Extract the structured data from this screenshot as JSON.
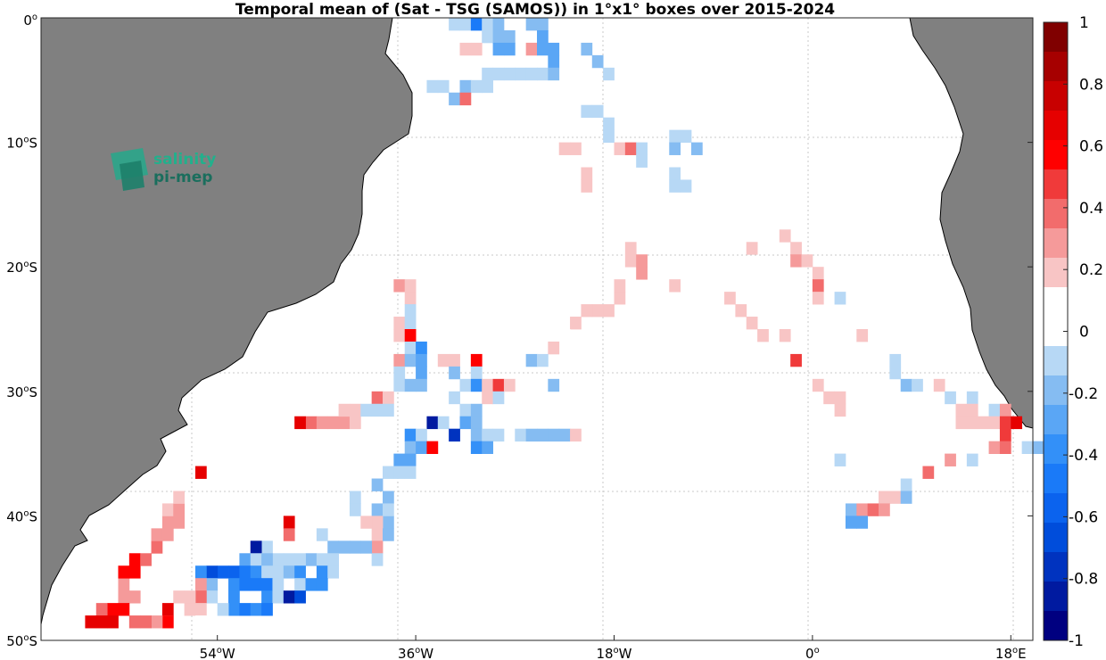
{
  "title": "Temporal mean of (Sat - TSG (SAMOS)) in 1°x1° boxes over 2015-2024",
  "logo": {
    "line1": "salinity",
    "line2": "pi-mep"
  },
  "colors": {
    "land": "#808080",
    "ocean": "#ffffff",
    "grid": "#c8c8c8"
  },
  "map": {
    "lon_range": [
      -70,
      20
    ],
    "lat_range": [
      -50,
      0
    ],
    "xticks": [
      {
        "lon": -54,
        "text": "54",
        "suffix": "W"
      },
      {
        "lon": -36,
        "text": "36",
        "suffix": "W"
      },
      {
        "lon": -18,
        "text": "18",
        "suffix": "W"
      },
      {
        "lon": 0,
        "text": "0",
        "suffix": ""
      },
      {
        "lon": 18,
        "text": "18",
        "suffix": "E"
      }
    ],
    "yticks": [
      {
        "lat": 0,
        "text": "0",
        "suffix": ""
      },
      {
        "lat": -10,
        "text": "10",
        "suffix": "S"
      },
      {
        "lat": -20,
        "text": "20",
        "suffix": "S"
      },
      {
        "lat": -30,
        "text": "30",
        "suffix": "S"
      },
      {
        "lat": -40,
        "text": "40",
        "suffix": "S"
      },
      {
        "lat": -50,
        "text": "50",
        "suffix": "S"
      }
    ]
  },
  "colorbar": {
    "range": [
      -1,
      1
    ],
    "tick_labels": [
      "1",
      "0.8",
      "0.6",
      "0.4",
      "0.2",
      "0",
      "-0.2",
      "-0.4",
      "-0.6",
      "-0.8",
      "-1"
    ],
    "colors": [
      "#000080",
      "#001aa0",
      "#0033bf",
      "#004ddb",
      "#0b63ee",
      "#1a7af8",
      "#3390f8",
      "#5aa6f5",
      "#85bcf2",
      "#b7d8f5",
      "#ffffff",
      "#ffffff",
      "#f8c5c5",
      "#f59a9a",
      "#f26c6c",
      "#f03a3a",
      "#ff0000",
      "#e60000",
      "#c80000",
      "#a60000",
      "#800000"
    ]
  },
  "chart_data": {
    "type": "heatmap",
    "title": "Temporal mean of (Sat - TSG (SAMOS)) in 1°x1° boxes over 2015-2024",
    "x_axis": "longitude",
    "y_axis": "latitude",
    "cell_size_deg": 1,
    "value_range": [
      -1,
      1
    ],
    "cells": [
      [
        -33,
        -1,
        -0.1
      ],
      [
        -32,
        -1,
        -0.1
      ],
      [
        -31,
        -1,
        -0.5
      ],
      [
        -30,
        -1,
        -0.15
      ],
      [
        -29,
        -1,
        -0.2
      ],
      [
        -26,
        -1,
        -0.2
      ],
      [
        -25,
        -1,
        -0.25
      ],
      [
        -30,
        -2,
        -0.15
      ],
      [
        -29,
        -2,
        -0.2
      ],
      [
        -28,
        -2,
        -0.2
      ],
      [
        -25,
        -2,
        -0.3
      ],
      [
        -32,
        -3,
        0.2
      ],
      [
        -31,
        -3,
        0.2
      ],
      [
        -29,
        -3,
        -0.3
      ],
      [
        -28,
        -3,
        -0.3
      ],
      [
        -26,
        -3,
        0.25
      ],
      [
        -25,
        -3,
        -0.3
      ],
      [
        -24,
        -3,
        -0.3
      ],
      [
        -21,
        -3,
        -0.2
      ],
      [
        -24,
        -4,
        -0.3
      ],
      [
        -20,
        -4,
        -0.25
      ],
      [
        -30,
        -5,
        -0.15
      ],
      [
        -29,
        -5,
        -0.15
      ],
      [
        -28,
        -5,
        -0.1
      ],
      [
        -27,
        -5,
        -0.1
      ],
      [
        -26,
        -5,
        -0.1
      ],
      [
        -25,
        -5,
        -0.1
      ],
      [
        -24,
        -5,
        -0.2
      ],
      [
        -19,
        -5,
        -0.1
      ],
      [
        -35,
        -6,
        -0.1
      ],
      [
        -34,
        -6,
        -0.1
      ],
      [
        -32,
        -6,
        -0.2
      ],
      [
        -31,
        -6,
        -0.1
      ],
      [
        -30,
        -6,
        -0.1
      ],
      [
        -33,
        -7,
        -0.2
      ],
      [
        -32,
        -7,
        0.35
      ],
      [
        -21,
        -8,
        -0.1
      ],
      [
        -20,
        -8,
        -0.1
      ],
      [
        -19,
        -9,
        -0.1
      ],
      [
        -19,
        -10,
        -0.1
      ],
      [
        -13,
        -10,
        -0.1
      ],
      [
        -12,
        -10,
        -0.1
      ],
      [
        -23,
        -11,
        0.15
      ],
      [
        -22,
        -11,
        0.15
      ],
      [
        -18,
        -11,
        0.2
      ],
      [
        -17,
        -11,
        0.4
      ],
      [
        -16,
        -11,
        -0.1
      ],
      [
        -13,
        -11,
        -0.25
      ],
      [
        -11,
        -11,
        -0.2
      ],
      [
        -16,
        -12,
        -0.1
      ],
      [
        -21,
        -13,
        0.15
      ],
      [
        -13,
        -13,
        -0.1
      ],
      [
        -21,
        -14,
        0.15
      ],
      [
        -13,
        -14,
        -0.1
      ],
      [
        -12,
        -14,
        -0.1
      ],
      [
        -17,
        -19,
        0.15
      ],
      [
        -6,
        -19,
        0.15
      ],
      [
        -3,
        -18,
        0.15
      ],
      [
        -2,
        -19,
        0.15
      ],
      [
        -17,
        -20,
        0.15
      ],
      [
        -16,
        -20,
        0.3
      ],
      [
        -2,
        -20,
        0.25
      ],
      [
        -1,
        -20,
        0.2
      ],
      [
        -16,
        -21,
        0.3
      ],
      [
        0,
        -21,
        0.2
      ],
      [
        -18,
        -22,
        0.2
      ],
      [
        -13,
        -22,
        0.15
      ],
      [
        -8,
        -23,
        0.2
      ],
      [
        0,
        -22,
        0.35
      ],
      [
        -18,
        -23,
        0.2
      ],
      [
        0,
        -23,
        0.2
      ],
      [
        2,
        -23,
        -0.1
      ],
      [
        -19,
        -24,
        0.2
      ],
      [
        -20,
        -24,
        0.2
      ],
      [
        -21,
        -24,
        0.2
      ],
      [
        -7,
        -24,
        0.15
      ],
      [
        -22,
        -25,
        0.15
      ],
      [
        -6,
        -25,
        0.15
      ],
      [
        -23,
        -26,
        0.1
      ],
      [
        -5,
        -26,
        0.15
      ],
      [
        -3,
        -26,
        0.15
      ],
      [
        4,
        -26,
        0.15
      ],
      [
        -24,
        -27,
        0.15
      ],
      [
        -2,
        -28,
        0.45
      ],
      [
        7,
        -28,
        -0.1
      ],
      [
        7,
        -29,
        -0.1
      ],
      [
        0,
        -30,
        0.15
      ],
      [
        8,
        -30,
        -0.25
      ],
      [
        9,
        -30,
        -0.1
      ],
      [
        11,
        -30,
        0.15
      ],
      [
        1,
        -31,
        0.2
      ],
      [
        2,
        -31,
        0.2
      ],
      [
        12,
        -31,
        -0.1
      ],
      [
        14,
        -31,
        -0.1
      ],
      [
        2,
        -32,
        0.2
      ],
      [
        13,
        -32,
        0.15
      ],
      [
        14,
        -32,
        0.2
      ],
      [
        16,
        -32,
        -0.1
      ],
      [
        13,
        -33,
        0.2
      ],
      [
        14,
        -33,
        0.2
      ],
      [
        15,
        -33,
        0.2
      ],
      [
        16,
        -33,
        0.2
      ],
      [
        17,
        -32,
        0.3
      ],
      [
        17,
        -33,
        0.45
      ],
      [
        18,
        -33,
        0.7
      ],
      [
        17,
        -34,
        0.45
      ],
      [
        16,
        -35,
        0.25
      ],
      [
        17,
        -35,
        0.4
      ],
      [
        19,
        -35,
        -0.1
      ],
      [
        20,
        -35,
        -0.25
      ],
      [
        14,
        -36,
        -0.1
      ],
      [
        12,
        -36,
        0.25
      ],
      [
        2,
        -36,
        -0.1
      ],
      [
        10,
        -37,
        0.35
      ],
      [
        8,
        -38,
        -0.1
      ],
      [
        6,
        -39,
        0.2
      ],
      [
        7,
        -39,
        0.2
      ],
      [
        8,
        -39,
        -0.25
      ],
      [
        3,
        -40,
        -0.2
      ],
      [
        4,
        -40,
        0.3
      ],
      [
        5,
        -40,
        0.35
      ],
      [
        6,
        -40,
        0.3
      ],
      [
        3,
        -41,
        -0.3
      ],
      [
        4,
        -41,
        -0.3
      ],
      [
        -38,
        -22,
        0.3
      ],
      [
        -37,
        -22,
        0.15
      ],
      [
        -37,
        -23,
        0.15
      ],
      [
        -37,
        -24,
        -0.1
      ],
      [
        -38,
        -25,
        0.2
      ],
      [
        -37,
        -25,
        -0.1
      ],
      [
        -38,
        -26,
        0.15
      ],
      [
        -37,
        -26,
        0.6
      ],
      [
        -37,
        -27,
        -0.1
      ],
      [
        -36,
        -27,
        -0.4
      ],
      [
        -38,
        -28,
        0.25
      ],
      [
        -37,
        -28,
        -0.2
      ],
      [
        -36,
        -28,
        -0.3
      ],
      [
        -38,
        -29,
        -0.1
      ],
      [
        -36,
        -29,
        -0.3
      ],
      [
        -38,
        -30,
        -0.1
      ],
      [
        -37,
        -30,
        -0.2
      ],
      [
        -36,
        -30,
        -0.2
      ],
      [
        -34,
        -28,
        0.2
      ],
      [
        -33,
        -28,
        0.2
      ],
      [
        -33,
        -29,
        -0.2
      ],
      [
        -31,
        -28,
        0.6
      ],
      [
        -31,
        -29,
        -0.1
      ],
      [
        -32,
        -30,
        -0.1
      ],
      [
        -31,
        -30,
        -0.45
      ],
      [
        -30,
        -30,
        0.2
      ],
      [
        -29,
        -30,
        0.45
      ],
      [
        -28,
        -30,
        0.2
      ],
      [
        -26,
        -28,
        -0.2
      ],
      [
        -25,
        -28,
        -0.15
      ],
      [
        -24,
        -30,
        -0.2
      ],
      [
        -30,
        -31,
        0.15
      ],
      [
        -29,
        -31,
        -0.15
      ],
      [
        -33,
        -31,
        -0.15
      ],
      [
        -32,
        -32,
        -0.1
      ],
      [
        -31,
        -32,
        -0.2
      ],
      [
        -35,
        -33,
        -0.95
      ],
      [
        -34,
        -33,
        -0.15
      ],
      [
        -32,
        -33,
        -0.3
      ],
      [
        -33,
        -34,
        -0.8
      ],
      [
        -31,
        -33,
        -0.2
      ],
      [
        -31,
        -34,
        -0.2
      ],
      [
        -30,
        -34,
        -0.1
      ],
      [
        -29,
        -34,
        -0.1
      ],
      [
        -37,
        -34,
        -0.4
      ],
      [
        -36,
        -34,
        -0.15
      ],
      [
        -37,
        -35,
        -0.25
      ],
      [
        -36,
        -35,
        -0.3
      ],
      [
        -35,
        -35,
        0.6
      ],
      [
        -31,
        -35,
        -0.4
      ],
      [
        -30,
        -35,
        -0.3
      ],
      [
        -27,
        -34,
        -0.15
      ],
      [
        -26,
        -34,
        -0.25
      ],
      [
        -25,
        -34,
        -0.25
      ],
      [
        -24,
        -34,
        -0.25
      ],
      [
        -23,
        -34,
        -0.2
      ],
      [
        -22,
        -34,
        0.15
      ],
      [
        -38,
        -36,
        -0.3
      ],
      [
        -37,
        -36,
        -0.3
      ],
      [
        -39,
        -37,
        -0.1
      ],
      [
        -38,
        -37,
        -0.1
      ],
      [
        -37,
        -37,
        -0.1
      ],
      [
        -40,
        -38,
        -0.2
      ],
      [
        -42,
        -39,
        -0.1
      ],
      [
        -39,
        -39,
        -0.2
      ],
      [
        -42,
        -40,
        -0.1
      ],
      [
        -40,
        -40,
        -0.2
      ],
      [
        -39,
        -41,
        -0.2
      ],
      [
        -40,
        -41,
        0.2
      ],
      [
        -39,
        -40,
        -0.1
      ],
      [
        -40,
        -42,
        0.2
      ],
      [
        -41,
        -41,
        0.15
      ],
      [
        -40,
        -43,
        0.25
      ],
      [
        -39,
        -42,
        -0.25
      ],
      [
        -40,
        -44,
        -0.1
      ],
      [
        -41,
        -43,
        -0.2
      ],
      [
        -42,
        -43,
        -0.2
      ],
      [
        -43,
        -43,
        -0.2
      ],
      [
        -44,
        -43,
        -0.2
      ],
      [
        -45,
        -42,
        -0.1
      ],
      [
        -48,
        -41,
        0.7
      ],
      [
        -48,
        -42,
        0.35
      ],
      [
        -46,
        -44,
        -0.2
      ],
      [
        -45,
        -44,
        -0.1
      ],
      [
        -44,
        -44,
        -0.1
      ],
      [
        -47,
        -44,
        -0.1
      ],
      [
        -48,
        -44,
        -0.1
      ],
      [
        -49,
        -44,
        -0.1
      ],
      [
        -50,
        -43,
        -0.15
      ],
      [
        -51,
        -43,
        -0.95
      ],
      [
        -52,
        -44,
        -0.35
      ],
      [
        -51,
        -44,
        -0.1
      ],
      [
        -50,
        -44,
        -0.2
      ],
      [
        -49,
        -45,
        -0.1
      ],
      [
        -48,
        -45,
        -0.2
      ],
      [
        -47,
        -45,
        -0.45
      ],
      [
        -45,
        -45,
        -0.4
      ],
      [
        -44,
        -45,
        -0.15
      ],
      [
        -53,
        -45,
        -0.6
      ],
      [
        -54,
        -45,
        -0.6
      ],
      [
        -55,
        -45,
        -0.7
      ],
      [
        -52,
        -45,
        -0.5
      ],
      [
        -51,
        -45,
        -0.4
      ],
      [
        -50,
        -45,
        -0.1
      ],
      [
        -56,
        -45,
        -0.45
      ],
      [
        -53,
        -46,
        -0.4
      ],
      [
        -52,
        -46,
        -0.55
      ],
      [
        -51,
        -46,
        -0.5
      ],
      [
        -50,
        -46,
        -0.55
      ],
      [
        -49,
        -46,
        -0.1
      ],
      [
        -47,
        -46,
        -0.1
      ],
      [
        -46,
        -46,
        -0.4
      ],
      [
        -45,
        -46,
        -0.45
      ],
      [
        -55,
        -46,
        -0.2
      ],
      [
        -56,
        -46,
        0.25
      ],
      [
        -53,
        -47,
        -0.4
      ],
      [
        -50,
        -47,
        -0.45
      ],
      [
        -49,
        -47,
        -0.15
      ],
      [
        -48,
        -47,
        -0.95
      ],
      [
        -47,
        -47,
        -0.75
      ],
      [
        -55,
        -47,
        -0.1
      ],
      [
        -56,
        -47,
        0.35
      ],
      [
        -53,
        -48,
        -0.45
      ],
      [
        -52,
        -48,
        -0.5
      ],
      [
        -51,
        -48,
        -0.45
      ],
      [
        -50,
        -48,
        -0.5
      ],
      [
        -54,
        -48,
        -0.1
      ],
      [
        -57,
        -47,
        0.15
      ],
      [
        -58,
        -47,
        0.15
      ],
      [
        -59,
        -48,
        0.65
      ],
      [
        -59,
        -49,
        0.2
      ],
      [
        -57,
        -48,
        0.2
      ],
      [
        -56,
        -48,
        0.15
      ],
      [
        -56,
        -49,
        0.1
      ],
      [
        -62,
        -47,
        0.3
      ],
      [
        -63,
        -47,
        0.3
      ],
      [
        -63,
        -48,
        0.55
      ],
      [
        -64,
        -48,
        0.55
      ],
      [
        -65,
        -48,
        0.35
      ],
      [
        -64,
        -49,
        0.65
      ],
      [
        -65,
        -49,
        0.65
      ],
      [
        -66,
        -49,
        0.65
      ],
      [
        -59,
        -49,
        0.6
      ],
      [
        -60,
        -49,
        0.3
      ],
      [
        -61,
        -49,
        0.4
      ],
      [
        -62,
        -49,
        0.35
      ],
      [
        -63,
        -46,
        0.3
      ],
      [
        -63,
        -45,
        0.6
      ],
      [
        -62,
        -45,
        0.6
      ],
      [
        -62,
        -44,
        0.6
      ],
      [
        -61,
        -44,
        0.4
      ],
      [
        -60,
        -43,
        0.35
      ],
      [
        -60,
        -42,
        0.25
      ],
      [
        -59,
        -42,
        0.25
      ],
      [
        -59,
        -41,
        0.3
      ],
      [
        -58,
        -41,
        0.3
      ],
      [
        -59,
        -40,
        0.2
      ],
      [
        -58,
        -40,
        0.3
      ],
      [
        -58,
        -39,
        0.15
      ],
      [
        -56,
        -37,
        0.65
      ],
      [
        -46,
        -33,
        0.4
      ],
      [
        -45,
        -33,
        0.3
      ],
      [
        -44,
        -33,
        0.3
      ],
      [
        -43,
        -33,
        0.25
      ],
      [
        -42,
        -33,
        0.2
      ],
      [
        -47,
        -33,
        0.7
      ],
      [
        -43,
        -32,
        0.2
      ],
      [
        -42,
        -32,
        0.2
      ],
      [
        -40,
        -31,
        0.35
      ],
      [
        -39,
        -31,
        0.2
      ],
      [
        -40,
        -32,
        -0.1
      ],
      [
        -41,
        -32,
        -0.1
      ],
      [
        -39,
        -32,
        -0.1
      ]
    ]
  }
}
